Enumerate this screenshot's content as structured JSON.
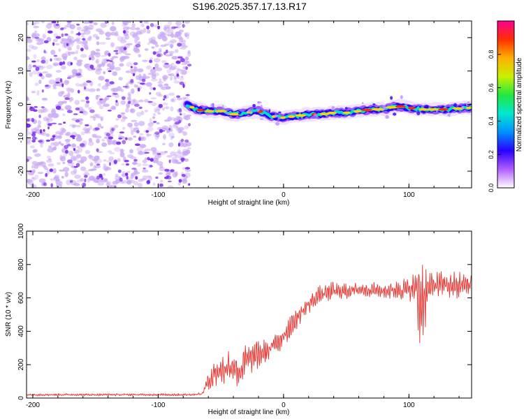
{
  "title": "S196.2025.357.17.13.R17",
  "colors": {
    "background": "#ffffff",
    "axis": "#000000",
    "snr_line": "#e8302a",
    "noise_dot": "#c8a8f4",
    "noise_blob": "#7a2af0"
  },
  "chart_data": [
    {
      "type": "heatmap",
      "name": "spectrogram",
      "xlabel": "Height of straight line (km)",
      "ylabel": "Frequency (Hz)",
      "xlim": [
        -205,
        150
      ],
      "ylim": [
        -25,
        25
      ],
      "xticks": [
        -200,
        -100,
        0,
        100
      ],
      "xtick_labels": [
        "-200",
        "-100",
        "0",
        "100"
      ],
      "yticks": [
        -20,
        -10,
        0,
        10,
        20
      ],
      "ytick_labels": [
        "-20",
        "-10",
        "0",
        "10",
        "20"
      ],
      "noise_region_x": [
        -205,
        -75
      ],
      "ridge": {
        "x": [
          -77,
          -70,
          -60,
          -50,
          -40,
          -30,
          -20,
          -10,
          0,
          10,
          20,
          30,
          40,
          50,
          60,
          70,
          80,
          90,
          100,
          110,
          120,
          130,
          140,
          150
        ],
        "y": [
          0,
          -1.5,
          -2,
          -2,
          -3,
          -2.5,
          -2,
          -3.5,
          -4,
          -3.5,
          -3,
          -3,
          -2.5,
          -2.5,
          -2,
          -1.5,
          -1.5,
          -0.5,
          -1,
          -1.5,
          -1.5,
          -1.5,
          -1.2,
          -1
        ]
      },
      "colorbar": {
        "label": "Normalized spectral amplitude",
        "range": [
          0.0,
          1.0
        ],
        "ticks": [
          0.0,
          0.2,
          0.4,
          0.6,
          0.8
        ],
        "tick_labels": [
          "0.0",
          "0.2",
          "0.4",
          "0.6",
          "0.8"
        ],
        "stops": [
          "#ffffff",
          "#b060ff",
          "#2a00ff",
          "#0090ff",
          "#00e8d0",
          "#20e840",
          "#c8f000",
          "#ffb000",
          "#ff3000",
          "#ff0090"
        ]
      }
    },
    {
      "type": "line",
      "name": "snr",
      "xlabel": "Height of straight line (km)",
      "ylabel": "SNR (10 * v/v)",
      "xlim": [
        -205,
        150
      ],
      "ylim": [
        0,
        1000
      ],
      "xticks": [
        -200,
        -100,
        0,
        100
      ],
      "xtick_labels": [
        "-200",
        "-100",
        "0",
        "100"
      ],
      "yticks": [
        0,
        200,
        400,
        600,
        800,
        1000
      ],
      "ytick_labels": [
        "0",
        "200",
        "400",
        "600",
        "800",
        "1000"
      ],
      "series": [
        {
          "name": "SNR",
          "x": [
            -205,
            -180,
            -150,
            -120,
            -90,
            -75,
            -65,
            -60,
            -55,
            -50,
            -45,
            -40,
            -35,
            -30,
            -25,
            -20,
            -15,
            -10,
            -5,
            0,
            5,
            10,
            15,
            20,
            25,
            30,
            40,
            50,
            60,
            70,
            80,
            90,
            100,
            105,
            108,
            110,
            112,
            115,
            118,
            120,
            125,
            130,
            135,
            140,
            145,
            150
          ],
          "y": [
            20,
            20,
            20,
            20,
            20,
            20,
            25,
            100,
            150,
            170,
            180,
            200,
            150,
            230,
            240,
            260,
            270,
            300,
            330,
            380,
            420,
            470,
            520,
            560,
            600,
            620,
            640,
            640,
            650,
            650,
            640,
            650,
            650,
            660,
            600,
            580,
            620,
            640,
            660,
            680,
            680,
            680,
            670,
            670,
            680,
            680
          ],
          "amplitude": [
            8,
            8,
            8,
            8,
            8,
            8,
            10,
            70,
            120,
            120,
            120,
            110,
            110,
            110,
            100,
            100,
            90,
            90,
            90,
            80,
            80,
            70,
            60,
            60,
            60,
            60,
            60,
            50,
            50,
            50,
            50,
            60,
            80,
            120,
            350,
            380,
            320,
            200,
            120,
            90,
            90,
            90,
            90,
            90,
            90,
            90
          ]
        }
      ]
    }
  ]
}
